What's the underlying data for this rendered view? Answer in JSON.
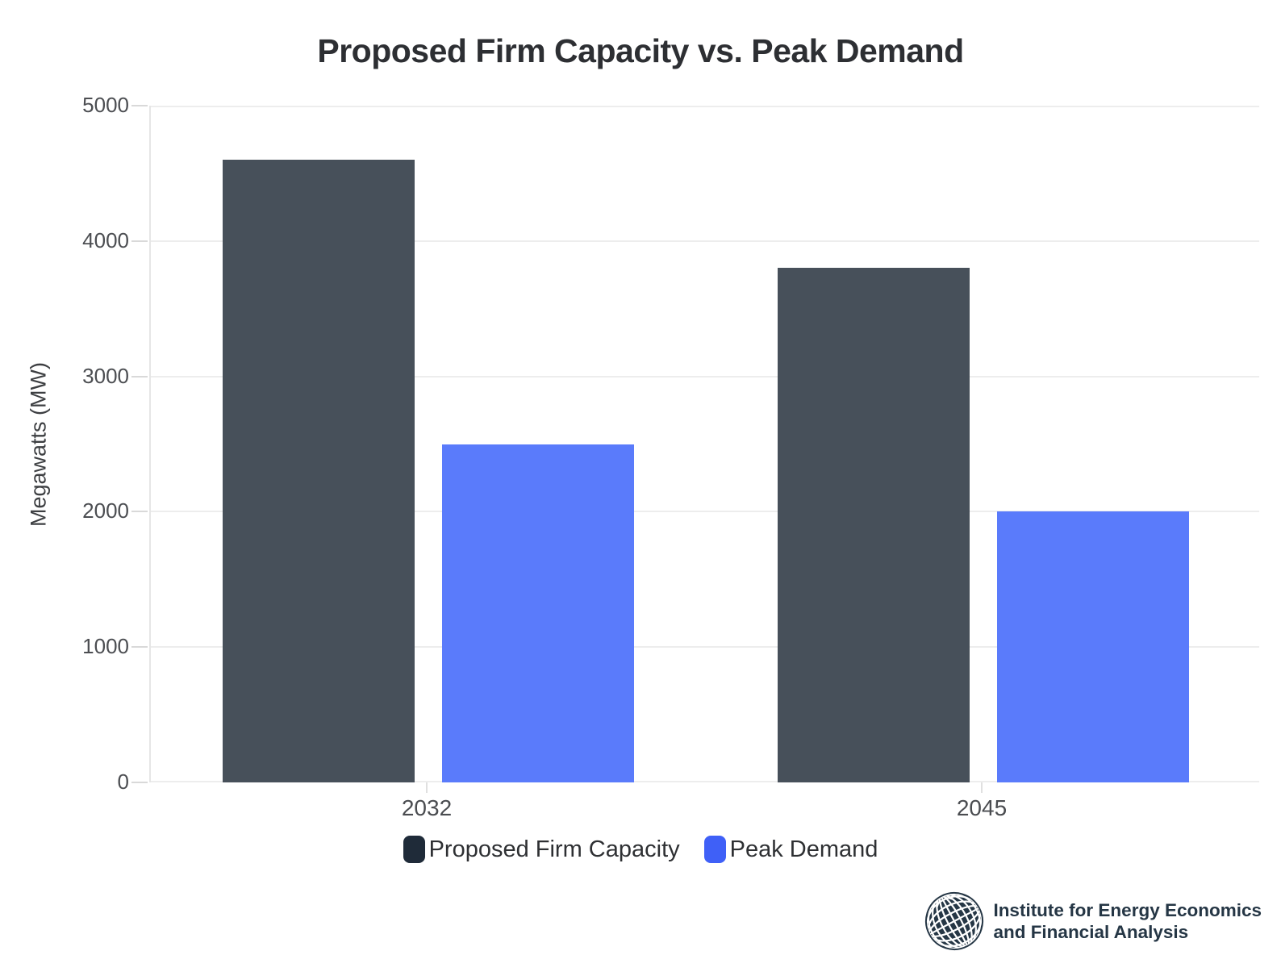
{
  "title": "Proposed Firm Capacity vs. Peak Demand",
  "y_axis": {
    "label": "Megawatts (MW)",
    "ticks": [
      "5000",
      "4000",
      "3000",
      "2000",
      "1000",
      "0"
    ]
  },
  "x_axis": {
    "categories": [
      "2032",
      "2045"
    ]
  },
  "legend": [
    {
      "label": "Proposed Firm Capacity",
      "color": "#1f2b39"
    },
    {
      "label": "Peak Demand",
      "color": "#3f60f7"
    }
  ],
  "colors": {
    "bar_dark": "#47505a",
    "bar_blue": "#5a7bfb",
    "gridline": "#ededed",
    "axis_line": "#e6e6e6",
    "title_text": "#2d2f33",
    "tick_text": "#4c4e52",
    "brand_navy": "#253645"
  },
  "chart_data": {
    "type": "bar",
    "categories": [
      "2032",
      "2045"
    ],
    "series": [
      {
        "name": "Proposed Firm Capacity",
        "values": [
          4600,
          3800
        ],
        "color": "#47505a"
      },
      {
        "name": "Peak Demand",
        "values": [
          2500,
          2000
        ],
        "color": "#5a7bfb"
      }
    ],
    "title": "Proposed Firm Capacity vs. Peak Demand",
    "xlabel": "",
    "ylabel": "Megawatts (MW)",
    "ylim": [
      0,
      5000
    ],
    "ytick_interval": 1000,
    "grid": true,
    "legend_position": "bottom"
  },
  "branding": {
    "logo_icon": "ieefa-globe-icon",
    "line1": "Institute for Energy Economics",
    "line2": "and Financial Analysis"
  }
}
